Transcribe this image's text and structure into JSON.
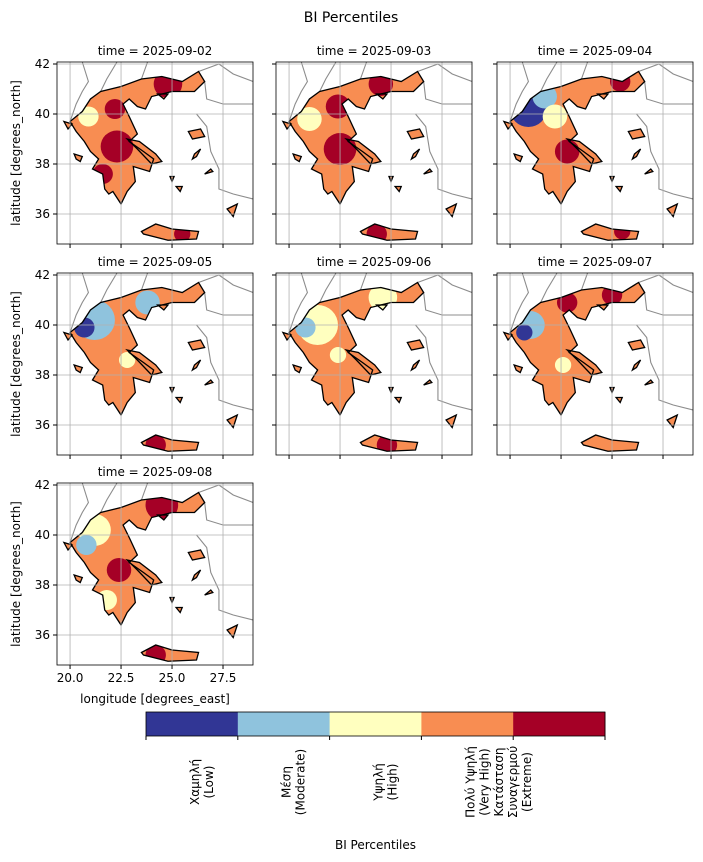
{
  "title": "BI Percentiles",
  "panels": [
    {
      "title": "time = 2025-09-02"
    },
    {
      "title": "time = 2025-09-03"
    },
    {
      "title": "time = 2025-09-04"
    },
    {
      "title": "time = 2025-09-05"
    },
    {
      "title": "time = 2025-09-06"
    },
    {
      "title": "time = 2025-09-07"
    },
    {
      "title": "time = 2025-09-08"
    }
  ],
  "xlabel": "longitude [degrees_east]",
  "ylabel": "latitude [degrees_north]",
  "xlim": [
    19.36,
    28.97
  ],
  "ylim": [
    34.8,
    42.08
  ],
  "xticks": [
    {
      "value": 20,
      "label": "20.0"
    },
    22.5,
    {
      "value": 25,
      "label": "25.0"
    },
    27.5
  ],
  "yticks": [
    36,
    38,
    40,
    42
  ],
  "grid": true,
  "colorbar": {
    "label": "BI Percentiles",
    "categories": [
      [
        "Χαμηλή",
        "(Low)"
      ],
      [
        "Μέση",
        "(Moderate)"
      ],
      [
        "Υψηλή",
        "(High)"
      ],
      [
        "Πολύ Υψηλή",
        "(Very High)"
      ],
      [
        "Κατάσταση",
        "Συναγερμού",
        "(Extreme)"
      ]
    ],
    "colors": [
      "#313695",
      "#8fc3dd",
      "#ffffbf",
      "#f88d52",
      "#a50026"
    ]
  }
}
